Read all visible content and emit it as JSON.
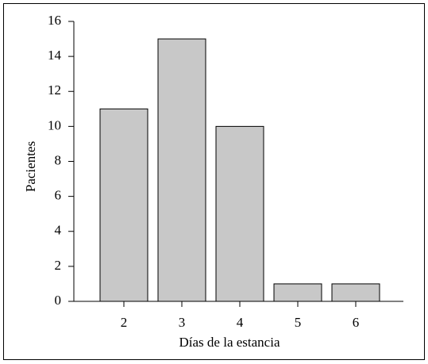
{
  "chart_data": {
    "type": "bar",
    "categories": [
      "2",
      "3",
      "4",
      "5",
      "6"
    ],
    "values": [
      11,
      15,
      10,
      1,
      1
    ],
    "color": "#c8c8c8",
    "xlabel": "Días de la estancia",
    "ylabel": "Pacientes",
    "ylim": [
      0,
      16
    ],
    "yticks": [
      0,
      2,
      4,
      6,
      8,
      10,
      12,
      14,
      16
    ],
    "grid": false
  }
}
